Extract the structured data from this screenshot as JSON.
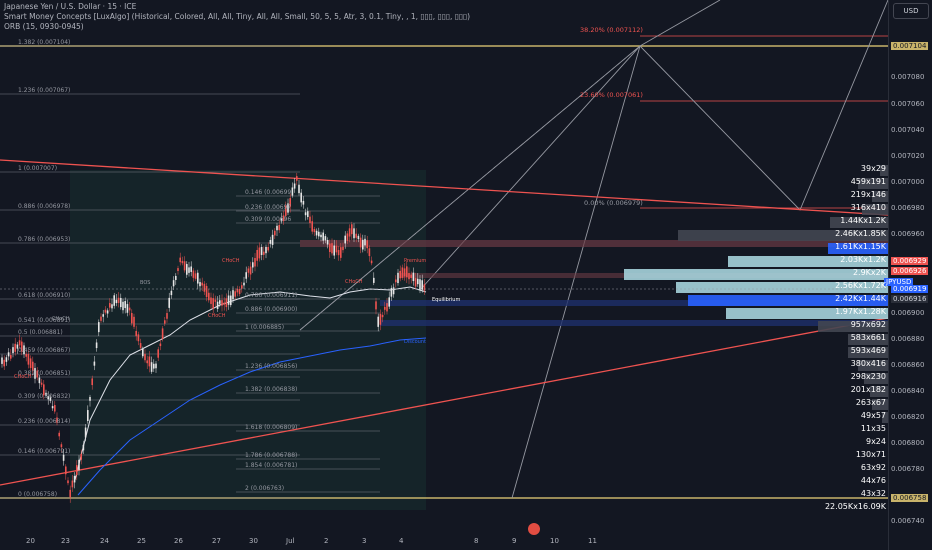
{
  "header": {
    "symbol_line": "Japanese Yen / U.S. Dollar · 15 · ICE",
    "indicator_smc": "Smart Money Concepts [LuxAlgo] (Historical, Colored, All, All, Tiny, All, All, Small, 50, 5, 5, Atr, 3, 0.1, Tiny, , 1, ▯▯▯, ▯▯▯, ▯▯▯)",
    "indicator_orb": "ORB (15, 0930-0945)"
  },
  "currency_button": "USD",
  "price_axis": [
    "0.007080",
    "0.007060",
    "0.007040",
    "0.007020",
    "0.007000",
    "0.006980",
    "0.006960",
    "0.006900",
    "0.006880",
    "0.006860",
    "0.006840",
    "0.006820",
    "0.006800",
    "0.006780",
    "0.006740"
  ],
  "price_tags": {
    "top": "0.007104",
    "r1": "0.006929",
    "r2": "0.006926",
    "symbol": "JPYUSD",
    "current": "0.006919",
    "r3": "0.006916",
    "bottom": "0.006758"
  },
  "date_axis": [
    "20",
    "23",
    "24",
    "25",
    "26",
    "27",
    "30",
    "Jul",
    "2",
    "3",
    "4",
    "8",
    "9",
    "10",
    "11"
  ],
  "fib_left": [
    {
      "label": "1.382 (0.007104)"
    },
    {
      "label": "1.236 (0.007067)"
    },
    {
      "label": "1 (0.007007)"
    },
    {
      "label": "0.886 (0.006978)"
    },
    {
      "label": "0.786 (0.006953)"
    },
    {
      "label": "0.618 (0.006910)"
    },
    {
      "label": "0.541 (0.006891)"
    },
    {
      "label": "0.5 (0.006881)"
    },
    {
      "label": "0.459 (0.006867)"
    },
    {
      "label": "0.382 (0.006851)"
    },
    {
      "label": "0.309 (0.006832)"
    },
    {
      "label": "0.236 (0.006814)"
    },
    {
      "label": "0.146 (0.006791)"
    },
    {
      "label": "0 (0.006758)"
    }
  ],
  "fib_mid": [
    {
      "label": "0.146 (0.00699"
    },
    {
      "label": "0.236 (0.00697"
    },
    {
      "label": "0.309 (0.00696"
    },
    {
      "label": "0.786 (0.006911)"
    },
    {
      "label": "0.886 (0.006900)"
    },
    {
      "label": "1 (0.006885)"
    },
    {
      "label": "1.236 (0.006856)"
    },
    {
      "label": "1.382 (0.006838)"
    },
    {
      "label": "1.618 (0.006809)"
    },
    {
      "label": "1.786 (0.006788)"
    },
    {
      "label": "1.854 (0.006781)"
    },
    {
      "label": "2 (0.006763)"
    }
  ],
  "fib_right": [
    {
      "label": "38.20% (0.007112)"
    },
    {
      "label": "23.60% (0.007061)"
    },
    {
      "label": "0.00% (0.006979)"
    }
  ],
  "smc_labels": {
    "bos": "BOS",
    "choch_a": "CHoCH",
    "choch_b": "CHoCH",
    "choch_c": "CHoCH",
    "choch_d": "CHoCH",
    "choch_e": "CHoCH",
    "premium": "Premium",
    "equilibrium": "Equilibrium",
    "discount": "Discount"
  },
  "volume_profile": [
    "39x29",
    "459x191",
    "219x146",
    "316x410",
    "1.44Kx1.2K",
    "2.46Kx1.85K",
    "1.61Kx1.15K",
    "2.03Kx1.2K",
    "2.9Kx2K",
    "2.56Kx1.72K",
    "2.42Kx1.44K",
    "1.97Kx1.28K",
    "957x692",
    "583x661",
    "593x469",
    "380x416",
    "298x230",
    "201x182",
    "263x67",
    "49x57",
    "11x35",
    "9x24",
    "130x71",
    "63x92",
    "44x76",
    "43x32",
    "22.05Kx16.09K"
  ],
  "colors": {
    "background": "#131722",
    "up_candle": "#e6e6e6",
    "down_candle": "#ef5350",
    "trendline": "#ef5350",
    "ma_blue": "#2962ff",
    "ma_white": "#e0e3eb",
    "vp_light": "#a6d3dc",
    "vp_dark": "#2962ff",
    "vp_gray": "#434651",
    "gold_level": "#c8b36a",
    "zone_teal": "#1b3a3a"
  }
}
